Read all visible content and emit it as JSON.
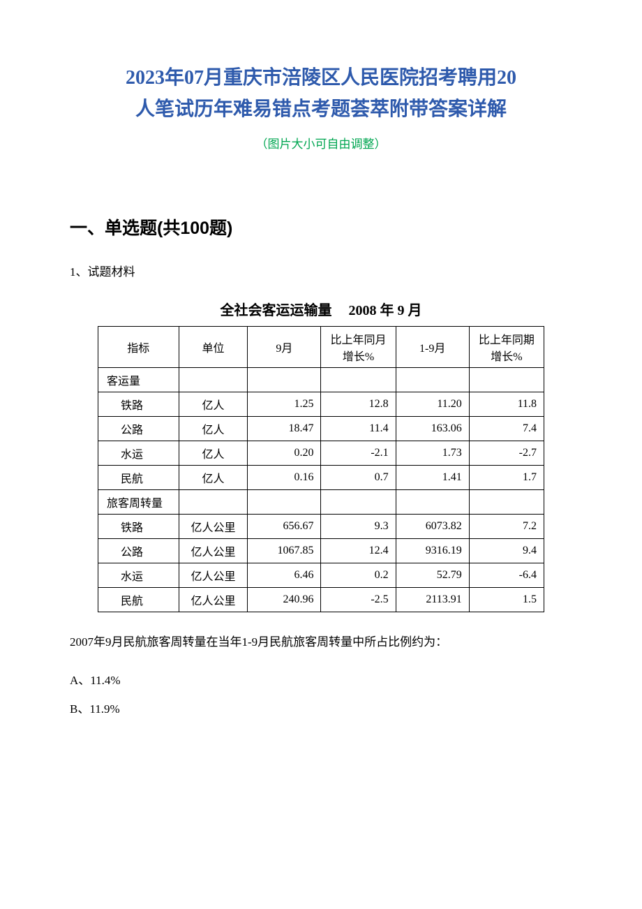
{
  "title_line1": "2023年07月重庆市涪陵区人民医院招考聘用20",
  "title_line2": "人笔试历年难易错点考题荟萃附带答案详解",
  "subtitle": "（图片大小可自由调整）",
  "section_heading": "一、单选题(共100题)",
  "question_label": "1、试题材料",
  "table_caption_left": "全社会客运运输量",
  "table_caption_right": "2008 年 9 月",
  "table": {
    "columns": [
      "指标",
      "单位",
      "9月",
      "比上年同月增长%",
      "1-9月",
      "比上年同期增长%"
    ],
    "section1_label": "客运量",
    "section1_rows": [
      {
        "name": "铁路",
        "unit": "亿人",
        "sep": "1.25",
        "sep_pct": "12.8",
        "range": "11.20",
        "range_pct": "11.8"
      },
      {
        "name": "公路",
        "unit": "亿人",
        "sep": "18.47",
        "sep_pct": "11.4",
        "range": "163.06",
        "range_pct": "7.4"
      },
      {
        "name": "水运",
        "unit": "亿人",
        "sep": "0.20",
        "sep_pct": "-2.1",
        "range": "1.73",
        "range_pct": "-2.7"
      },
      {
        "name": "民航",
        "unit": "亿人",
        "sep": "0.16",
        "sep_pct": "0.7",
        "range": "1.41",
        "range_pct": "1.7"
      }
    ],
    "section2_label": "旅客周转量",
    "section2_rows": [
      {
        "name": "铁路",
        "unit": "亿人公里",
        "sep": "656.67",
        "sep_pct": "9.3",
        "range": "6073.82",
        "range_pct": "7.2"
      },
      {
        "name": "公路",
        "unit": "亿人公里",
        "sep": "1067.85",
        "sep_pct": "12.4",
        "range": "9316.19",
        "range_pct": "9.4"
      },
      {
        "name": "水运",
        "unit": "亿人公里",
        "sep": "6.46",
        "sep_pct": "0.2",
        "range": "52.79",
        "range_pct": "-6.4"
      },
      {
        "name": "民航",
        "unit": "亿人公里",
        "sep": "240.96",
        "sep_pct": "-2.5",
        "range": "2113.91",
        "range_pct": "1.5"
      }
    ]
  },
  "question_text": "2007年9月民航旅客周转量在当年1-9月民航旅客周转量中所占比例约为：",
  "options": {
    "a": "A、11.4%",
    "b": "B、11.9%"
  },
  "colors": {
    "title": "#2e5aac",
    "subtitle": "#00a651",
    "text": "#000000",
    "border": "#000000",
    "background": "#ffffff"
  }
}
